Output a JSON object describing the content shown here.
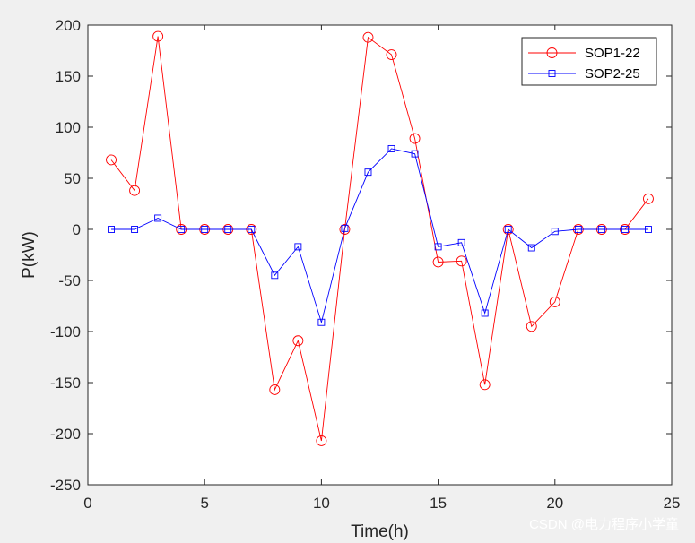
{
  "chart_data": {
    "type": "line",
    "title": "",
    "xlabel": "Time(h)",
    "ylabel": "P(kW)",
    "xlim": [
      0,
      25
    ],
    "ylim": [
      -250,
      200
    ],
    "xticks": [
      0,
      5,
      10,
      15,
      20,
      25
    ],
    "yticks": [
      -250,
      -200,
      -150,
      -100,
      -50,
      0,
      50,
      100,
      150,
      200
    ],
    "grid": false,
    "legend_position": "top-right",
    "x": [
      1,
      2,
      3,
      4,
      5,
      6,
      7,
      8,
      9,
      10,
      11,
      12,
      13,
      14,
      15,
      16,
      17,
      18,
      19,
      20,
      21,
      22,
      23,
      24
    ],
    "series": [
      {
        "name": "SOP1-22",
        "color": "#ff0000",
        "marker": "circle",
        "values": [
          68,
          38,
          189,
          0,
          0,
          0,
          0,
          -157,
          -109,
          -207,
          0,
          188,
          171,
          89,
          -32,
          -31,
          -152,
          0,
          -95,
          -71,
          0,
          0,
          0,
          30
        ]
      },
      {
        "name": "SOP2-25",
        "color": "#0000ff",
        "marker": "square",
        "values": [
          0,
          0,
          11,
          0,
          0,
          0,
          0,
          -45,
          -17,
          -91,
          1,
          56,
          79,
          74,
          -17,
          -13,
          -82,
          0,
          -18,
          -2,
          0,
          0,
          0,
          0
        ]
      }
    ]
  },
  "watermark": "CSDN @电力程序小学童"
}
